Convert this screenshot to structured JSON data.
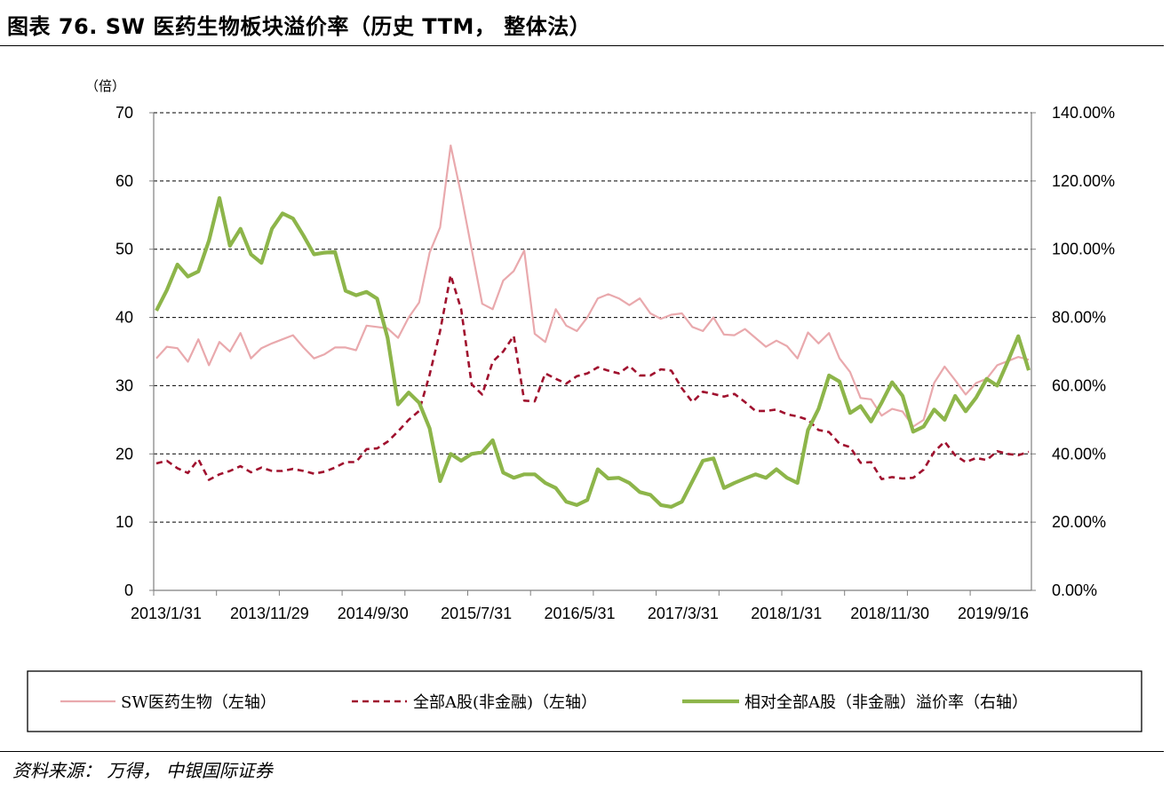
{
  "figure": {
    "title": "图表 76. SW 医药生物板块溢价率（历史 TTM， 整体法）",
    "source": "资料来源： 万得， 中银国际证券"
  },
  "colors": {
    "sw_pharma": "#e9a9ad",
    "all_a": "#a0112e",
    "premium": "#8db54a",
    "grid": "#000000",
    "axis": "#7f7f7f"
  },
  "chart_data": {
    "type": "line",
    "left_axis": {
      "unit_label": "（倍）",
      "ylim": [
        0,
        70
      ],
      "ticks": [
        "0",
        "10",
        "20",
        "30",
        "40",
        "50",
        "60",
        "70"
      ]
    },
    "right_axis": {
      "ylim": [
        0,
        140
      ],
      "ticks": [
        "0.00%",
        "20.00%",
        "40.00%",
        "60.00%",
        "80.00%",
        "100.00%",
        "120.00%",
        "140.00%"
      ]
    },
    "x_tick_labels": [
      "2013/1/31",
      "2013/11/29",
      "2014/9/30",
      "2015/7/31",
      "2016/5/31",
      "2017/3/31",
      "2018/1/31",
      "2018/11/30",
      "2019/9/16"
    ],
    "grid": "horizontal dashed",
    "legend": "bottom",
    "series": [
      {
        "name": "SW医药生物（左轴）",
        "axis": "left",
        "style": "solid-thin",
        "values": [
          34,
          35.7,
          35.5,
          33.5,
          36.8,
          33,
          36.4,
          35,
          37.7,
          34,
          35.5,
          36.2,
          36.8,
          37.4,
          35.6,
          34,
          34.6,
          35.6,
          35.6,
          35.2,
          38.8,
          38.6,
          38.4,
          37,
          40,
          42.2,
          49.5,
          53.2,
          65.2,
          58,
          50,
          42,
          41.2,
          45.4,
          46.8,
          49.8,
          37.6,
          36.4,
          41.2,
          38.8,
          38,
          40,
          42.8,
          43.4,
          42.8,
          41.8,
          42.8,
          40.6,
          39.8,
          40.4,
          40.6,
          38.6,
          38,
          40,
          37.5,
          37.4,
          38.3,
          37,
          35.7,
          36.6,
          35.8,
          34,
          37.8,
          36.2,
          37.7,
          34,
          32,
          28.2,
          28,
          25.6,
          26.6,
          26.2,
          24,
          25,
          30.4,
          32.8,
          30.8,
          28.7,
          30.4,
          31,
          33,
          33.6,
          34.2,
          33.8
        ]
      },
      {
        "name": "全部A股(非金融)（左轴）",
        "axis": "left",
        "style": "dashed",
        "values": [
          18.6,
          19,
          17.9,
          17.2,
          19.2,
          16.2,
          17,
          17.5,
          18.2,
          17.3,
          18,
          17.5,
          17.5,
          17.8,
          17.5,
          17.1,
          17.4,
          18,
          18.8,
          18.8,
          20.7,
          20.8,
          21.8,
          23.3,
          25,
          26.3,
          31.6,
          38,
          46.2,
          41.2,
          30.2,
          28.7,
          33.5,
          35,
          37.3,
          27.8,
          27.7,
          31.8,
          31,
          30.3,
          31.4,
          31.8,
          32.7,
          32.2,
          31.8,
          32.9,
          31.5,
          31.5,
          32.4,
          32.2,
          29.6,
          27.6,
          29.1,
          28.8,
          28.4,
          28.8,
          27.6,
          26.3,
          26.3,
          26.5,
          25.8,
          25.5,
          25,
          23.5,
          23.2,
          21.5,
          21,
          18.7,
          18.8,
          16.3,
          16.6,
          16.4,
          16.5,
          17.7,
          20.3,
          21.8,
          19.8,
          18.8,
          19.4,
          19.1,
          20.4,
          20,
          19.8,
          20.3
        ]
      },
      {
        "name": "相对全部A股（非金融）溢价率（右轴）",
        "axis": "right",
        "style": "solid-thick",
        "values": [
          82,
          88,
          95.5,
          92,
          93.5,
          102.5,
          115,
          101,
          106,
          98.5,
          96,
          106,
          110.5,
          109,
          104,
          98.5,
          99,
          99.2,
          87.8,
          86.5,
          87.5,
          85.5,
          74,
          54.5,
          58,
          55,
          47.5,
          32,
          40,
          38,
          40,
          40.5,
          44,
          34.5,
          33,
          34,
          34,
          31.5,
          30,
          26,
          25,
          26.5,
          35.5,
          32.8,
          33,
          31.5,
          28.8,
          28,
          25,
          24.5,
          26,
          32,
          38,
          38.7,
          30,
          31.5,
          32.8,
          34,
          33,
          35.5,
          33,
          31.5,
          47,
          53.2,
          63,
          61.2,
          52,
          54,
          49.5,
          55,
          61,
          57,
          46.5,
          48,
          53,
          50,
          57,
          52.5,
          56.5,
          62,
          60,
          67,
          74.5,
          64.5
        ]
      }
    ]
  },
  "legend": {
    "items": [
      {
        "label": "SW医药生物（左轴）"
      },
      {
        "label": "全部A股(非金融)（左轴）"
      },
      {
        "label": "相对全部A股（非金融）溢价率（右轴）"
      }
    ]
  }
}
